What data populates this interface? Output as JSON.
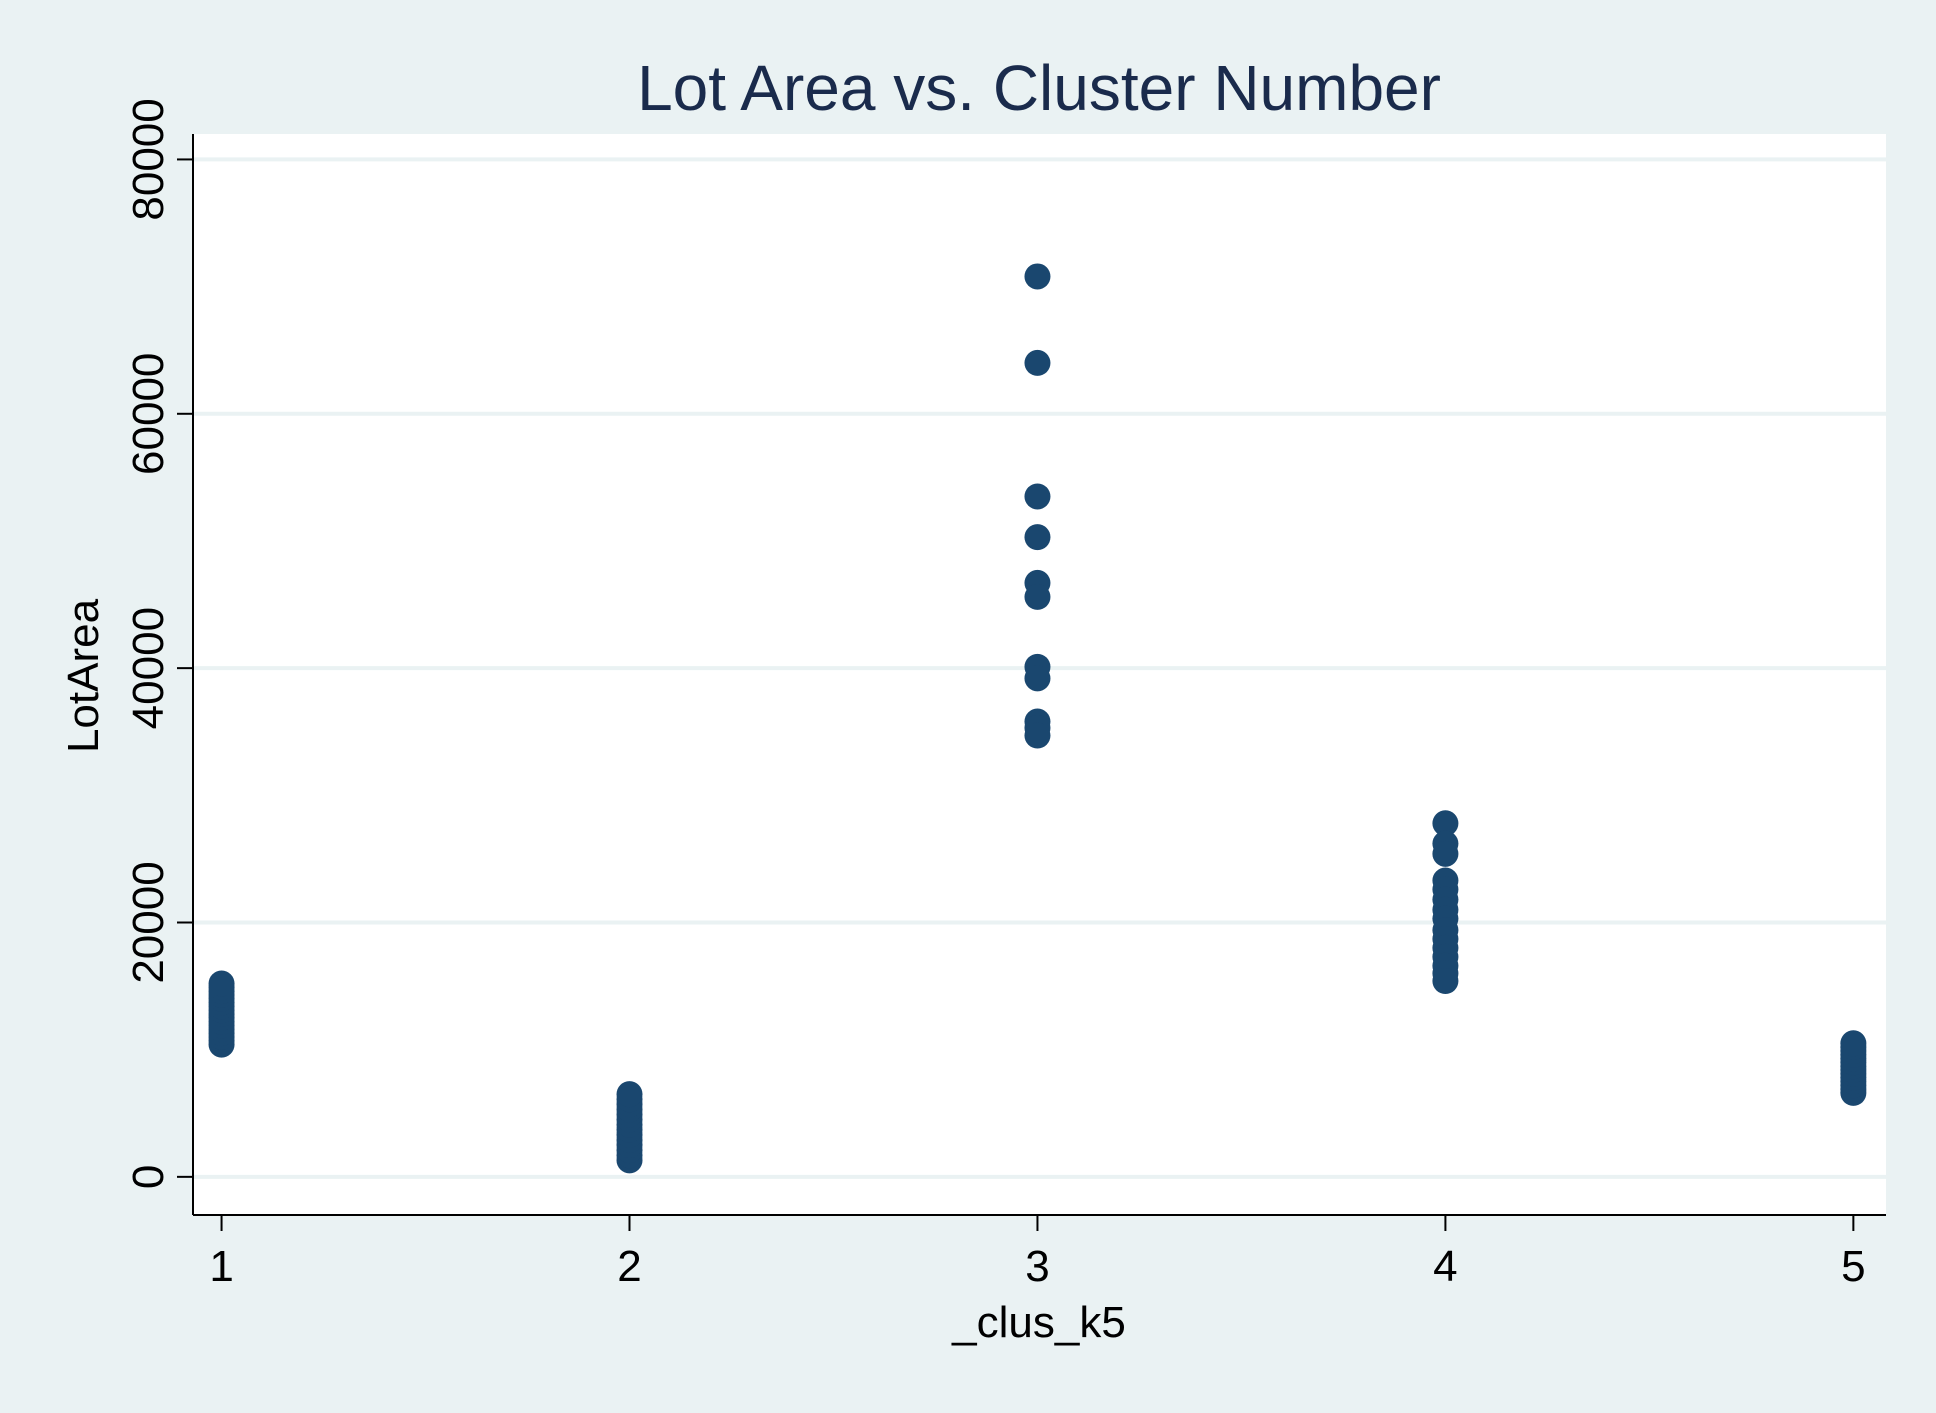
{
  "chart_data": {
    "type": "scatter",
    "title": "Lot Area vs. Cluster Number",
    "xlabel": "_clus_k5",
    "ylabel": "LotArea",
    "xlim": [
      0.93,
      5.08
    ],
    "ylim": [
      -3000,
      82000
    ],
    "x_ticks": [
      1,
      2,
      3,
      4,
      5
    ],
    "y_ticks": [
      0,
      20000,
      40000,
      60000,
      80000
    ],
    "grid": true,
    "colors": {
      "background": "#eaf2f3",
      "plot_background": "#ffffff",
      "gridline": "#eaf2f3",
      "marker": "#1a476f",
      "text": "#000000",
      "title": "#1a2b4c"
    },
    "series": [
      {
        "points": [
          {
            "x": 1,
            "y": 10400
          },
          {
            "x": 1,
            "y": 10700
          },
          {
            "x": 1,
            "y": 11000
          },
          {
            "x": 1,
            "y": 11300
          },
          {
            "x": 1,
            "y": 11600
          },
          {
            "x": 1,
            "y": 11900
          },
          {
            "x": 1,
            "y": 12200
          },
          {
            "x": 1,
            "y": 12500
          },
          {
            "x": 1,
            "y": 12800
          },
          {
            "x": 1,
            "y": 13100
          },
          {
            "x": 1,
            "y": 13400
          },
          {
            "x": 1,
            "y": 13700
          },
          {
            "x": 1,
            "y": 14000
          },
          {
            "x": 1,
            "y": 14300
          },
          {
            "x": 1,
            "y": 14600
          },
          {
            "x": 1,
            "y": 14900
          },
          {
            "x": 1,
            "y": 15200
          },
          {
            "x": 2,
            "y": 1300
          },
          {
            "x": 2,
            "y": 1700
          },
          {
            "x": 2,
            "y": 2100
          },
          {
            "x": 2,
            "y": 2500
          },
          {
            "x": 2,
            "y": 2900
          },
          {
            "x": 2,
            "y": 3300
          },
          {
            "x": 2,
            "y": 3700
          },
          {
            "x": 2,
            "y": 4100
          },
          {
            "x": 2,
            "y": 4500
          },
          {
            "x": 2,
            "y": 4900
          },
          {
            "x": 2,
            "y": 5300
          },
          {
            "x": 2,
            "y": 5700
          },
          {
            "x": 2,
            "y": 6100
          },
          {
            "x": 2,
            "y": 6500
          },
          {
            "x": 3,
            "y": 70800
          },
          {
            "x": 3,
            "y": 64000
          },
          {
            "x": 3,
            "y": 53500
          },
          {
            "x": 3,
            "y": 50300
          },
          {
            "x": 3,
            "y": 46700
          },
          {
            "x": 3,
            "y": 45600
          },
          {
            "x": 3,
            "y": 40100
          },
          {
            "x": 3,
            "y": 39200
          },
          {
            "x": 3,
            "y": 35800
          },
          {
            "x": 3,
            "y": 35300
          },
          {
            "x": 3,
            "y": 34700
          },
          {
            "x": 4,
            "y": 27800
          },
          {
            "x": 4,
            "y": 26200
          },
          {
            "x": 4,
            "y": 25400
          },
          {
            "x": 4,
            "y": 23300
          },
          {
            "x": 4,
            "y": 22600
          },
          {
            "x": 4,
            "y": 21800
          },
          {
            "x": 4,
            "y": 21000
          },
          {
            "x": 4,
            "y": 20300
          },
          {
            "x": 4,
            "y": 19400
          },
          {
            "x": 4,
            "y": 18700
          },
          {
            "x": 4,
            "y": 18000
          },
          {
            "x": 4,
            "y": 17300
          },
          {
            "x": 4,
            "y": 16600
          },
          {
            "x": 4,
            "y": 16000
          },
          {
            "x": 4,
            "y": 15400
          },
          {
            "x": 5,
            "y": 6600
          },
          {
            "x": 5,
            "y": 6900
          },
          {
            "x": 5,
            "y": 7200
          },
          {
            "x": 5,
            "y": 7500
          },
          {
            "x": 5,
            "y": 7800
          },
          {
            "x": 5,
            "y": 8100
          },
          {
            "x": 5,
            "y": 8400
          },
          {
            "x": 5,
            "y": 8700
          },
          {
            "x": 5,
            "y": 9000
          },
          {
            "x": 5,
            "y": 9300
          },
          {
            "x": 5,
            "y": 9600
          },
          {
            "x": 5,
            "y": 9900
          },
          {
            "x": 5,
            "y": 10200
          },
          {
            "x": 5,
            "y": 10500
          }
        ]
      }
    ]
  }
}
